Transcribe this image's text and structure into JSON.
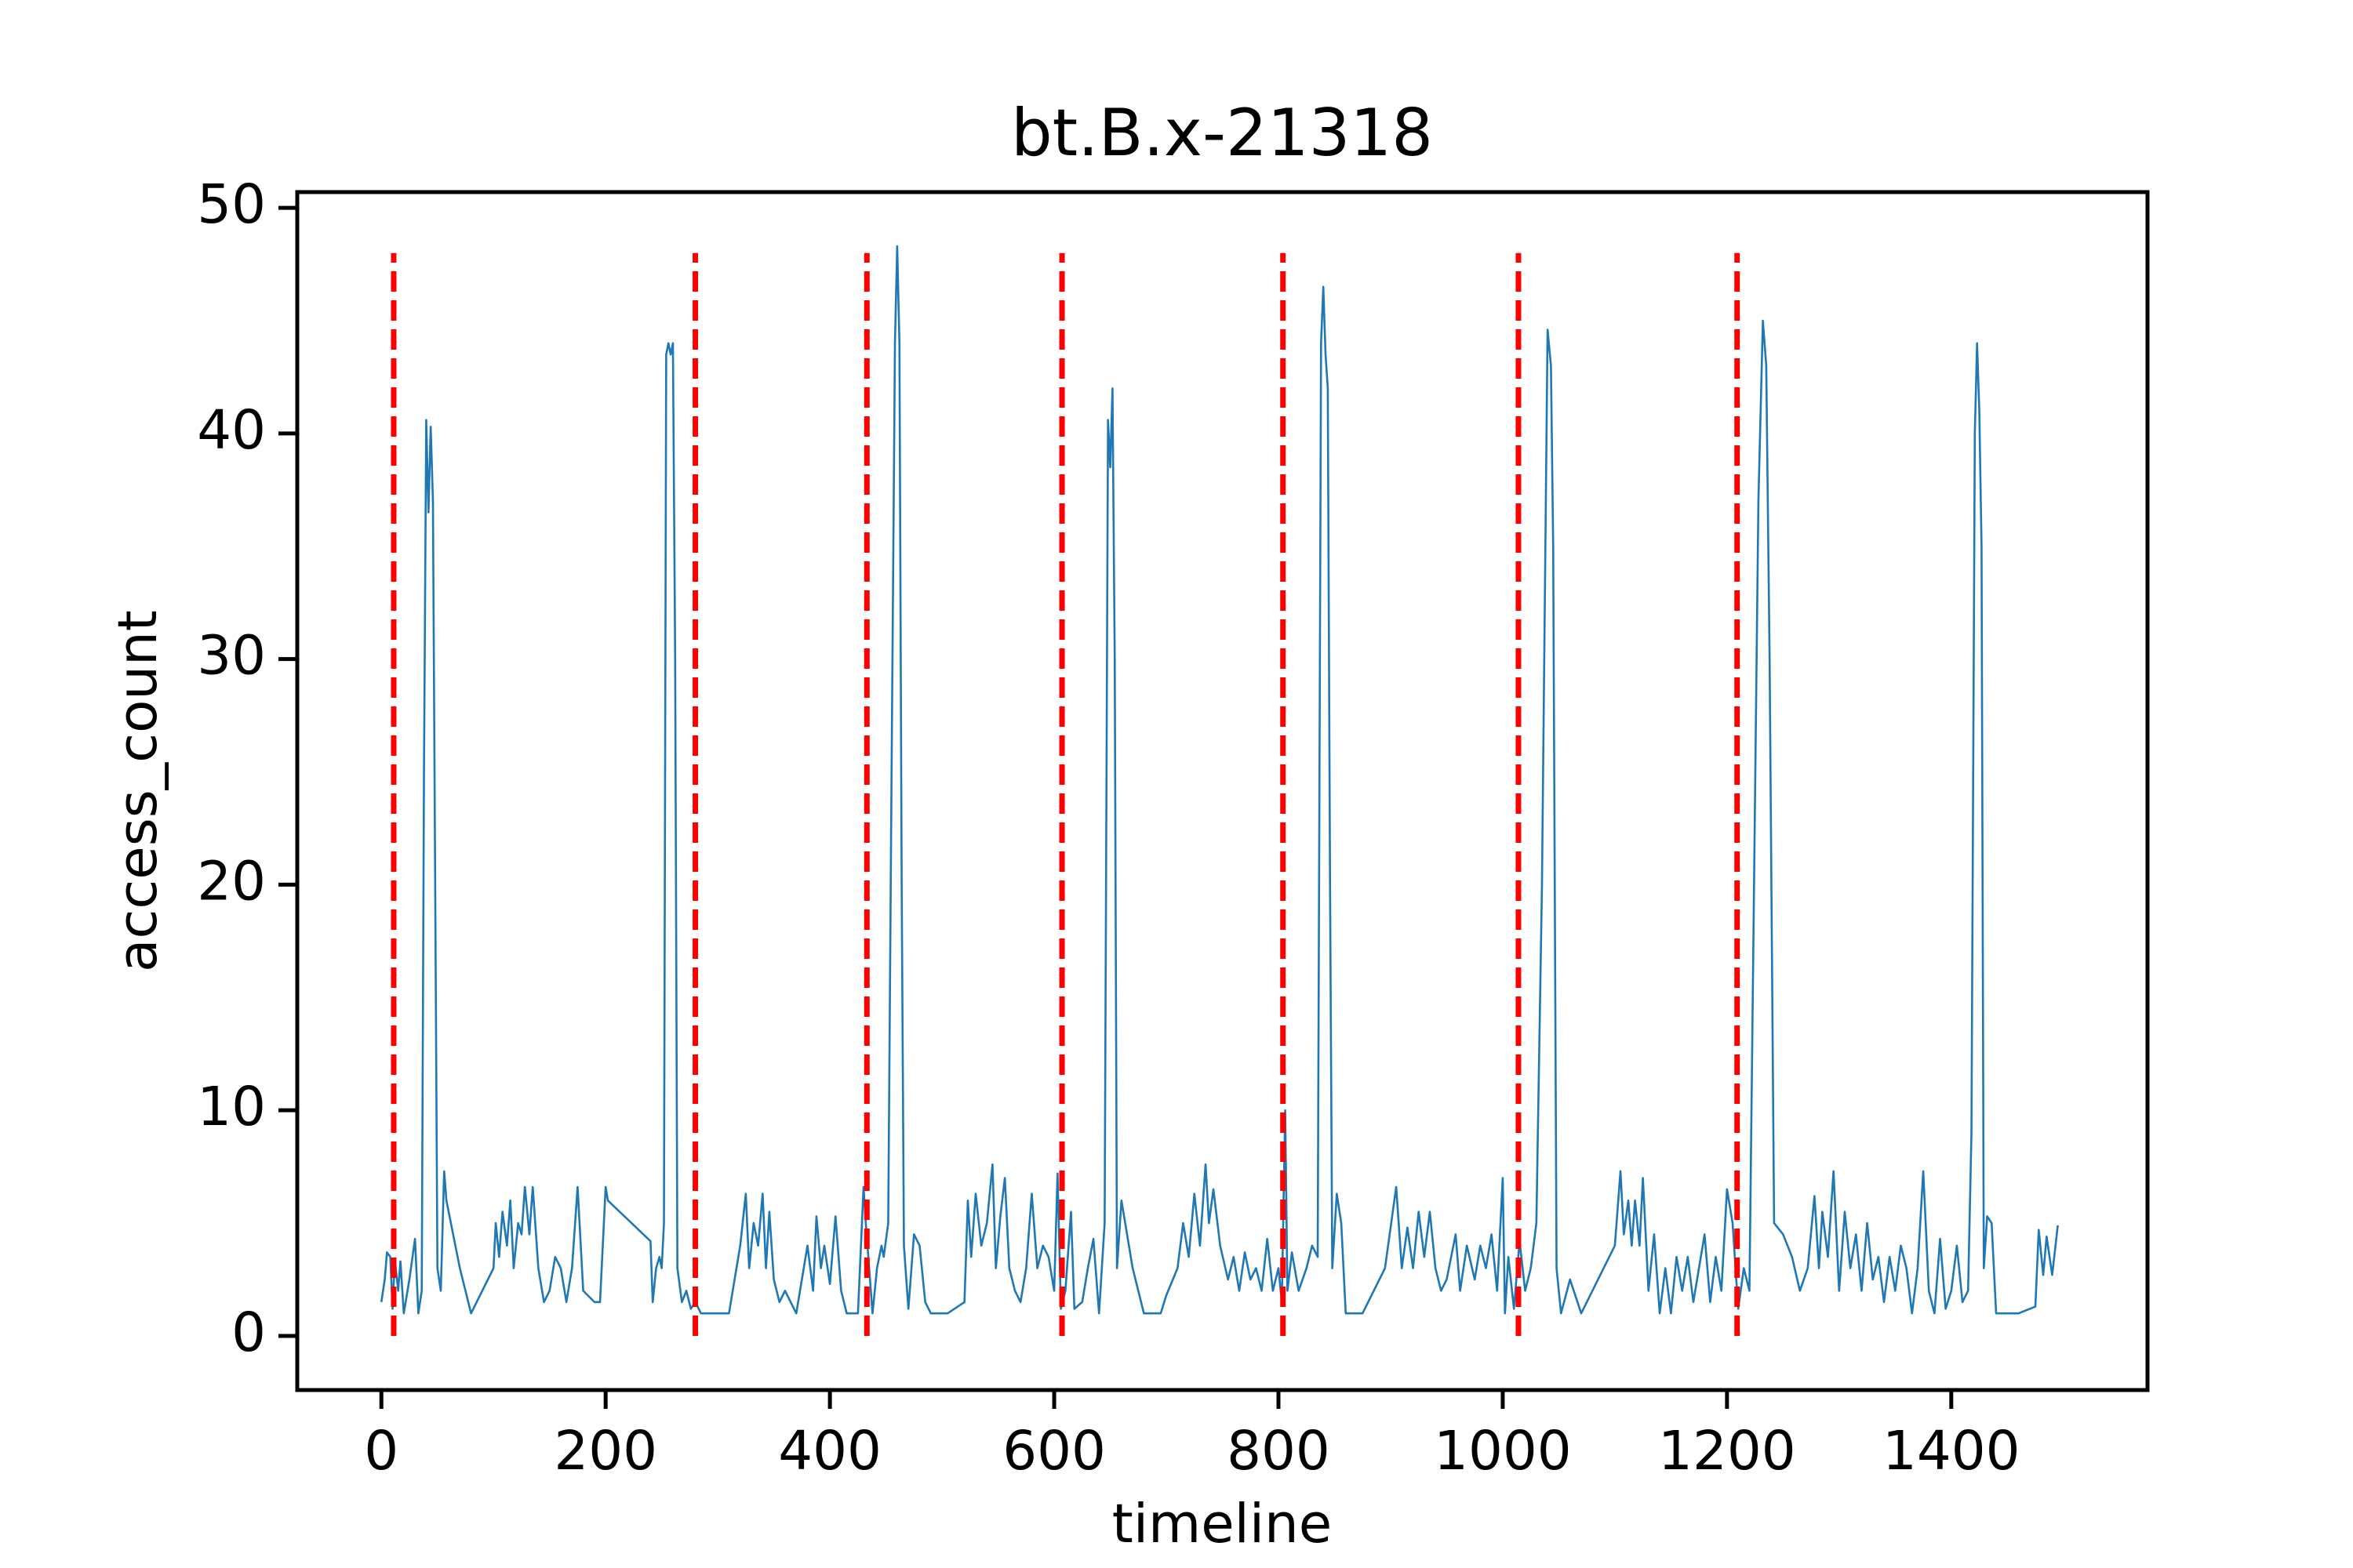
{
  "chart_data": {
    "type": "line",
    "title": "bt.B.x-21318",
    "x_label": "timeline",
    "y_label": "access_count",
    "xlim": [
      -75,
      1575
    ],
    "ylim": [
      -2.4,
      50.7
    ],
    "xticks": [
      0,
      200,
      400,
      600,
      800,
      1000,
      1200,
      1400
    ],
    "yticks": [
      0,
      10,
      20,
      30,
      40,
      50
    ],
    "series": [
      {
        "color": "#1f77b4",
        "x": [
          0,
          3,
          5,
          8,
          10,
          12,
          15,
          17,
          20,
          25,
          30,
          33,
          36,
          38,
          40,
          42,
          44,
          46,
          48,
          50,
          53,
          56,
          58,
          70,
          80,
          90,
          100,
          102,
          105,
          108,
          112,
          115,
          118,
          122,
          125,
          128,
          132,
          135,
          140,
          145,
          150,
          155,
          160,
          165,
          170,
          175,
          180,
          190,
          195,
          200,
          202,
          240,
          242,
          245,
          248,
          250,
          252,
          254,
          256,
          258,
          260,
          262,
          264,
          268,
          272,
          276,
          280,
          285,
          310,
          320,
          325,
          328,
          332,
          336,
          340,
          343,
          346,
          350,
          355,
          360,
          365,
          370,
          375,
          380,
          385,
          388,
          392,
          395,
          400,
          405,
          410,
          415,
          425,
          430,
          432,
          438,
          442,
          446,
          448,
          452,
          455,
          458,
          460,
          462,
          464,
          466,
          470,
          475,
          480,
          485,
          490,
          505,
          520,
          523,
          526,
          530,
          535,
          540,
          545,
          548,
          552,
          556,
          560,
          565,
          570,
          575,
          580,
          585,
          590,
          595,
          600,
          603,
          606,
          610,
          615,
          618,
          625,
          630,
          635,
          640,
          645,
          648,
          650,
          652,
          654,
          656,
          660,
          670,
          680,
          695,
          700,
          710,
          715,
          720,
          725,
          730,
          735,
          738,
          742,
          748,
          755,
          760,
          765,
          770,
          775,
          780,
          785,
          790,
          795,
          800,
          803,
          806,
          808,
          812,
          818,
          825,
          830,
          835,
          838,
          840,
          842,
          844,
          846,
          848,
          852,
          856,
          860,
          875,
          895,
          905,
          910,
          915,
          920,
          925,
          930,
          935,
          940,
          945,
          950,
          958,
          962,
          968,
          975,
          980,
          985,
          990,
          995,
          1000,
          1002,
          1005,
          1010,
          1015,
          1020,
          1025,
          1030,
          1035,
          1040,
          1043,
          1045,
          1048,
          1052,
          1060,
          1070,
          1100,
          1105,
          1108,
          1112,
          1115,
          1118,
          1122,
          1125,
          1130,
          1135,
          1140,
          1145,
          1150,
          1155,
          1160,
          1165,
          1170,
          1175,
          1180,
          1185,
          1190,
          1195,
          1200,
          1205,
          1210,
          1215,
          1220,
          1228,
          1232,
          1235,
          1238,
          1242,
          1250,
          1258,
          1265,
          1272,
          1278,
          1282,
          1285,
          1290,
          1295,
          1300,
          1305,
          1310,
          1315,
          1320,
          1325,
          1330,
          1335,
          1340,
          1345,
          1350,
          1355,
          1360,
          1365,
          1370,
          1375,
          1380,
          1385,
          1390,
          1395,
          1400,
          1405,
          1410,
          1415,
          1418,
          1421,
          1423,
          1425,
          1427,
          1429,
          1432,
          1436,
          1440,
          1460,
          1475,
          1478,
          1482,
          1485,
          1490,
          1495
        ],
        "values": [
          1.5,
          2.5,
          3.7,
          3.5,
          1.2,
          3.4,
          2,
          3.3,
          1,
          2.5,
          4.3,
          1,
          2,
          25,
          40.6,
          36.5,
          40.3,
          37,
          20,
          3,
          2,
          7.3,
          6,
          3,
          1,
          2,
          3,
          5,
          3.5,
          5.5,
          4,
          6,
          3,
          5,
          4.5,
          6.6,
          4.5,
          6.6,
          3,
          1.5,
          2,
          3.5,
          3,
          1.5,
          3,
          6.6,
          2,
          1.5,
          1.5,
          6.6,
          6,
          4.2,
          1.5,
          3,
          3.5,
          3,
          5,
          43.5,
          44,
          43.5,
          44,
          30,
          3,
          1.5,
          2,
          1.2,
          1.5,
          1,
          1,
          4,
          6.3,
          3,
          5,
          4,
          6.3,
          3,
          5.5,
          2.5,
          1.5,
          2,
          1.5,
          1,
          2.5,
          4,
          2,
          5.3,
          3,
          4,
          2.3,
          5.3,
          2,
          1,
          1,
          6.6,
          5,
          1,
          3,
          4,
          3.5,
          5,
          25,
          44,
          48.3,
          44,
          20,
          4,
          1.2,
          4.5,
          4,
          1.5,
          1,
          1,
          1.5,
          6,
          3.5,
          6.3,
          4,
          5,
          7.6,
          3,
          5.3,
          7,
          3,
          2,
          1.5,
          3,
          6.3,
          3,
          4,
          3.5,
          2,
          7.2,
          1.2,
          2,
          5.5,
          1.2,
          1.5,
          3,
          4.3,
          1,
          5,
          40.6,
          38.5,
          42,
          30,
          3,
          6,
          3,
          1,
          1,
          1.8,
          3,
          5,
          3.5,
          6.3,
          4,
          7.6,
          5,
          6.5,
          4,
          2.5,
          3.5,
          2,
          3.7,
          2.5,
          3,
          2,
          4.3,
          2,
          3,
          1.5,
          10,
          2,
          3.7,
          2,
          3,
          4,
          3.5,
          44,
          46.5,
          43.5,
          42,
          20,
          3,
          6.3,
          5,
          1,
          1,
          3,
          6.6,
          3,
          4.8,
          3,
          5.5,
          3.5,
          5.5,
          3,
          2,
          2.5,
          4.5,
          2,
          4,
          2.5,
          4,
          3,
          4.5,
          2,
          7,
          1,
          3.5,
          1.2,
          4.2,
          2,
          3,
          5,
          20,
          44.6,
          43,
          35,
          3,
          1,
          2.5,
          1,
          4,
          7.3,
          4.5,
          6,
          4,
          6,
          4,
          7,
          2,
          4.5,
          1,
          3,
          1,
          3.5,
          2,
          3.5,
          1.5,
          3,
          4.5,
          1.5,
          3.5,
          2,
          6.5,
          5,
          1.2,
          3,
          2,
          37,
          45,
          43,
          30,
          5,
          4.5,
          3.5,
          2,
          3,
          6.2,
          3,
          5.5,
          3.5,
          7.3,
          2,
          5.5,
          3,
          4.5,
          2,
          5,
          2.5,
          3.5,
          1.5,
          3.5,
          2,
          4,
          3,
          1,
          3,
          7.3,
          2,
          1,
          4.3,
          1.2,
          2,
          4,
          1.5,
          2,
          9,
          40,
          44,
          41,
          35,
          3,
          5.3,
          5,
          1,
          1,
          1.3,
          4.7,
          2.7,
          4.4,
          2.7,
          4.9
        ]
      }
    ],
    "vlines": {
      "x": [
        11,
        280,
        433,
        607,
        804,
        1014,
        1209
      ],
      "ymin": 0,
      "ymax": 48,
      "color": "#ff0000",
      "style": "dashed"
    }
  }
}
